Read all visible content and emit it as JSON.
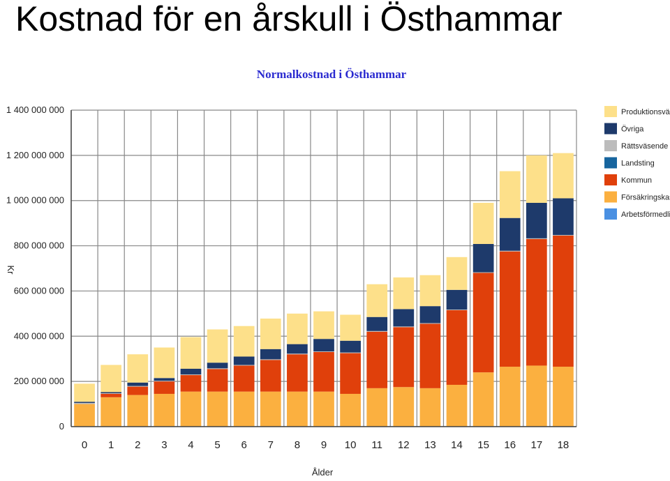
{
  "slide": {
    "title": "Kostnad för en årskull i Östhammar"
  },
  "chart_data": {
    "type": "bar",
    "stacked": true,
    "title": "Normalkostnad i Östhammar",
    "xlabel": "Ålder",
    "ylabel": "Kr",
    "ylim": [
      0,
      1400000000
    ],
    "yticks": [
      0,
      200000000,
      400000000,
      600000000,
      800000000,
      1000000000,
      1200000000,
      1400000000
    ],
    "ytick_labels": [
      "0",
      "200 000 000",
      "400 000 000",
      "600 000 000",
      "800 000 000",
      "1 000 000 000",
      "1 200 000 000",
      "1 400 000 000"
    ],
    "grid": true,
    "legend_position": "right",
    "categories": [
      "0",
      "1",
      "2",
      "3",
      "4",
      "5",
      "6",
      "7",
      "8",
      "9",
      "10",
      "11",
      "12",
      "13",
      "14",
      "15",
      "16",
      "17",
      "18"
    ],
    "series": [
      {
        "name": "Arbetsförmedling",
        "color": "#4a90e2",
        "values": [
          0,
          0,
          0,
          0,
          0,
          0,
          0,
          0,
          0,
          0,
          0,
          0,
          0,
          0,
          0,
          0,
          0,
          0,
          0
        ]
      },
      {
        "name": "Försäkringskassa",
        "color": "#fbb040",
        "values": [
          100000000,
          130000000,
          140000000,
          145000000,
          155000000,
          155000000,
          155000000,
          155000000,
          155000000,
          155000000,
          145000000,
          170000000,
          175000000,
          170000000,
          185000000,
          240000000,
          265000000,
          270000000,
          265000000
        ]
      },
      {
        "name": "Kommun",
        "color": "#e0400b",
        "values": [
          0,
          15000000,
          37000000,
          55000000,
          73000000,
          100000000,
          115000000,
          140000000,
          165000000,
          175000000,
          180000000,
          250000000,
          265000000,
          285000000,
          330000000,
          440000000,
          510000000,
          560000000,
          580000000
        ]
      },
      {
        "name": "Landsting",
        "color": "#17659e",
        "values": [
          0,
          0,
          0,
          0,
          0,
          0,
          0,
          0,
          0,
          0,
          0,
          0,
          0,
          0,
          0,
          0,
          0,
          0,
          0
        ]
      },
      {
        "name": "Rättsväsende",
        "color": "#bcbcbc",
        "values": [
          5000000,
          3000000,
          3000000,
          3000000,
          3000000,
          3000000,
          3000000,
          3000000,
          3000000,
          3000000,
          3000000,
          3000000,
          3000000,
          3000000,
          3000000,
          3000000,
          3000000,
          3000000,
          3000000
        ]
      },
      {
        "name": "Övriga",
        "color": "#1e3a6b",
        "values": [
          5000000,
          5000000,
          15000000,
          12000000,
          25000000,
          25000000,
          37000000,
          45000000,
          42000000,
          55000000,
          52000000,
          62000000,
          77000000,
          75000000,
          87000000,
          125000000,
          145000000,
          157000000,
          162000000
        ]
      },
      {
        "name": "Produktionsvärde",
        "color": "#fde08a",
        "values": [
          80000000,
          120000000,
          125000000,
          135000000,
          140000000,
          147000000,
          135000000,
          135000000,
          135000000,
          122000000,
          115000000,
          145000000,
          140000000,
          137000000,
          145000000,
          182000000,
          207000000,
          210000000,
          200000000
        ]
      }
    ],
    "legend_order": [
      "Produktionsvärde",
      "Övriga",
      "Rättsväsende",
      "Landsting",
      "Kommun",
      "Försäkringskassa",
      "Arbetsförmedling"
    ]
  }
}
